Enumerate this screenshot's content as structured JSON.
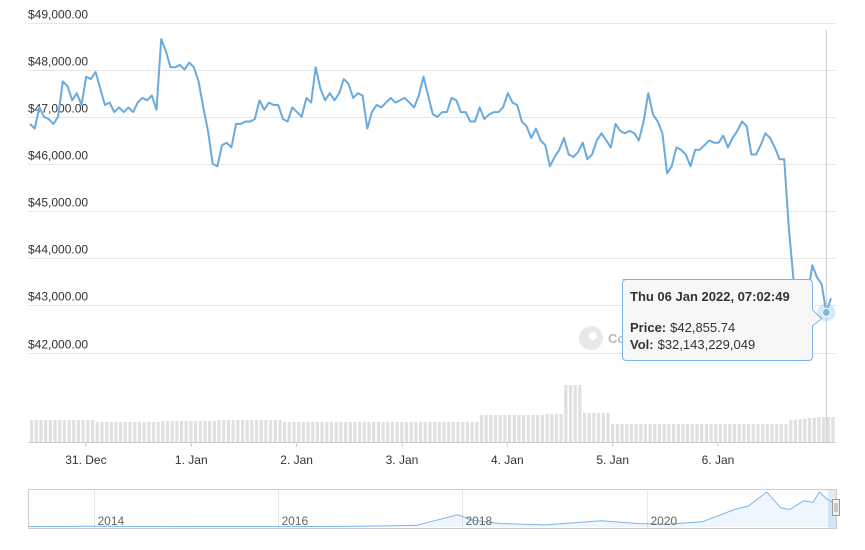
{
  "chart_data": {
    "type": "line",
    "y_axis": {
      "ticks": [
        "$49,000.00",
        "$48,000.00",
        "$47,000.00",
        "$46,000.00",
        "$45,000.00",
        "$44,000.00",
        "$43,000.00",
        "$42,000.00"
      ],
      "tick_values": [
        49000,
        48000,
        47000,
        46000,
        45000,
        44000,
        43000,
        42000
      ],
      "range": [
        41500,
        49000
      ]
    },
    "x_axis": {
      "ticks": [
        "31. Dec",
        "1. Jan",
        "2. Jan",
        "3. Jan",
        "4. Jan",
        "5. Jan",
        "6. Jan"
      ],
      "range_days": [
        -1.55,
        6.12
      ]
    },
    "series": [
      {
        "values": [
          46850,
          46750,
          47200,
          47000,
          46950,
          46850,
          47000,
          47750,
          47650,
          47350,
          47500,
          47250,
          47850,
          47800,
          47950,
          47600,
          47250,
          47300,
          47100,
          47200,
          47100,
          47200,
          47100,
          47300,
          47400,
          47350,
          47450,
          47150,
          48650,
          48400,
          48050,
          48050,
          48100,
          48000,
          48150,
          48050,
          47750,
          47200,
          46700,
          46000,
          45950,
          46400,
          46450,
          46350,
          46850,
          46850,
          46900,
          46900,
          46950,
          47350,
          47150,
          47300,
          47250,
          47250,
          46950,
          46900,
          47200,
          47100,
          47000,
          47400,
          47300,
          48050,
          47600,
          47350,
          47500,
          47350,
          47500,
          47800,
          47700,
          47400,
          47500,
          47450,
          46750,
          47100,
          47250,
          47200,
          47300,
          47400,
          47300,
          47350,
          47400,
          47300,
          47200,
          47450,
          47850,
          47450,
          47050,
          47000,
          47100,
          47100,
          47400,
          47350,
          47100,
          47100,
          46900,
          46900,
          47200,
          46950,
          47050,
          47100,
          47100,
          47200,
          47500,
          47300,
          47250,
          46900,
          46800,
          46550,
          46750,
          46500,
          46400,
          45950,
          46150,
          46300,
          46550,
          46200,
          46150,
          46250,
          46450,
          46100,
          46200,
          46500,
          46650,
          46500,
          46350,
          46850,
          46700,
          46650,
          46700,
          46650,
          46500,
          46900,
          47500,
          47050,
          46900,
          46650,
          45800,
          45950,
          46350,
          46300,
          46200,
          45950,
          46300,
          46300,
          46400,
          46500,
          46450,
          46450,
          46600,
          46350,
          46550,
          46700,
          46900,
          46800,
          46200,
          46200,
          46400,
          46650,
          46550,
          46350,
          46100,
          46100,
          44650,
          43550,
          43100,
          42950,
          43200,
          43850,
          43600,
          43450,
          42850,
          43150
        ],
        "volume": [
          22,
          22,
          22,
          22,
          22,
          22,
          22,
          22,
          22,
          22,
          22,
          22,
          22,
          22,
          20,
          20,
          20,
          20,
          20,
          20,
          20,
          20,
          20,
          20,
          20,
          20,
          20,
          20,
          21,
          21,
          21,
          21,
          21,
          21,
          21,
          21,
          21,
          21,
          21,
          21,
          22,
          22,
          22,
          22,
          22,
          22,
          22,
          22,
          22,
          22,
          22,
          22,
          22,
          22,
          20,
          20,
          20,
          20,
          20,
          20,
          20,
          20,
          20,
          20,
          20,
          20,
          20,
          20,
          20,
          20,
          20,
          20,
          20,
          20,
          20,
          20,
          20,
          20,
          20,
          20,
          20,
          20,
          20,
          20,
          20,
          20,
          20,
          20,
          20,
          20,
          20,
          20,
          20,
          20,
          20,
          20,
          27,
          27,
          27,
          27,
          27,
          27,
          27,
          27,
          27,
          27,
          27,
          27,
          27,
          27,
          28,
          28,
          28,
          28,
          57,
          57,
          57,
          57,
          29,
          29,
          29,
          29,
          29,
          29,
          18,
          18,
          18,
          18,
          18,
          18,
          18,
          18,
          18,
          18,
          18,
          18,
          18,
          18,
          18,
          18,
          18,
          18,
          18,
          18,
          18,
          18,
          18,
          18,
          18,
          18,
          18,
          18,
          18,
          18,
          18,
          18,
          18,
          18,
          18,
          18,
          18,
          18,
          22,
          22,
          23,
          23,
          24,
          24,
          25,
          25,
          25,
          25
        ]
      }
    ],
    "tooltip": {
      "title": "Thu 06 Jan 2022, 07:02:49",
      "price_label": "Price:",
      "price_value": "$42,855.74",
      "vol_label": "Vol:",
      "vol_value": "$32,143,229,049"
    },
    "watermark": "Co",
    "navigator": {
      "ticks": [
        "2014",
        "2016",
        "2018",
        "2020"
      ],
      "tick_years": [
        2014,
        2016,
        2018,
        2020
      ],
      "year_range": [
        2013.3,
        2022.05
      ],
      "history": [
        {
          "year": 2013.3,
          "value": 0.01
        },
        {
          "year": 2014.0,
          "value": 0.02
        },
        {
          "year": 2015.0,
          "value": 0.01
        },
        {
          "year": 2016.0,
          "value": 0.01
        },
        {
          "year": 2016.9,
          "value": 0.02
        },
        {
          "year": 2017.5,
          "value": 0.05
        },
        {
          "year": 2017.95,
          "value": 0.35
        },
        {
          "year": 2018.1,
          "value": 0.2
        },
        {
          "year": 2018.4,
          "value": 0.1
        },
        {
          "year": 2018.9,
          "value": 0.06
        },
        {
          "year": 2019.5,
          "value": 0.18
        },
        {
          "year": 2019.9,
          "value": 0.1
        },
        {
          "year": 2020.2,
          "value": 0.08
        },
        {
          "year": 2020.6,
          "value": 0.15
        },
        {
          "year": 2020.95,
          "value": 0.5
        },
        {
          "year": 2021.1,
          "value": 0.6
        },
        {
          "year": 2021.3,
          "value": 1.0
        },
        {
          "year": 2021.45,
          "value": 0.55
        },
        {
          "year": 2021.55,
          "value": 0.5
        },
        {
          "year": 2021.7,
          "value": 0.75
        },
        {
          "year": 2021.8,
          "value": 0.7
        },
        {
          "year": 2021.87,
          "value": 1.0
        },
        {
          "year": 2021.95,
          "value": 0.8
        },
        {
          "year": 2022.05,
          "value": 0.65
        }
      ]
    },
    "colors": {
      "line": "#7cb5ec",
      "line_stroke": "#6aaadd",
      "volume": "#e0e0e0",
      "grid": "#e6e6e6",
      "tooltip_border": "#7cb5ec",
      "tooltip_bg": "#f7f7f7"
    }
  }
}
